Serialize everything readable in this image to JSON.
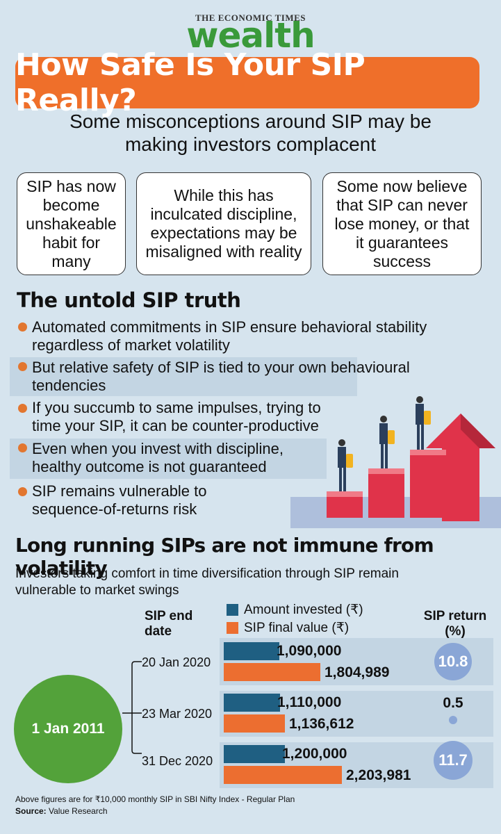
{
  "masthead": {
    "publisher": "THE ECONOMIC TIMES",
    "section": "wealth"
  },
  "title": "How Safe Is Your SIP Really?",
  "subtitle": [
    "Some misconceptions around SIP may be",
    "making investors complacent"
  ],
  "boxes": [
    {
      "text": "SIP has now become unshakeable habit for many"
    },
    {
      "text": "While this has inculcated discipline, expectations may be misaligned with reality"
    },
    {
      "text": "Some now believe that SIP can never lose money, or that it guarantees success"
    }
  ],
  "truth": {
    "heading": "The untold SIP truth",
    "bullets": [
      {
        "line1": "Automated commitments in SIP ensure behavioral stability",
        "line2": "regardless of market volatility"
      },
      {
        "line1": "But relative safety of SIP is tied to your own behavioural",
        "line2": "tendencies"
      },
      {
        "line1": "If you succumb to same impulses, trying to",
        "line2": "time your SIP, it can be counter-productive"
      },
      {
        "line1": "Even when you invest with discipline,",
        "line2": "healthy outcome is not guaranteed"
      },
      {
        "line1": "SIP remains vulnerable to",
        "line2": "sequence-of-returns risk"
      }
    ]
  },
  "long": {
    "heading": "Long running SIPs are not immune from volatility",
    "subtitle_line1": "Investors taking comfort in time diversification through SIP remain",
    "subtitle_line2": "vulnerable to market swings"
  },
  "colors": {
    "invested": "#1f5f82",
    "final": "#ec6e30",
    "return_circle": "#8aa6d6",
    "start": "#53a23a",
    "accent": "#ef6f2a"
  },
  "chart_data": {
    "type": "bar",
    "start_label": "1 Jan 2011",
    "column_heads": {
      "date_line1": "SIP end",
      "date_line2": "date",
      "return_line1": "SIP return",
      "return_line2": "(%)"
    },
    "categories": [
      "20 Jan 2020",
      "23 Mar 2020",
      "31 Dec 2020"
    ],
    "series": [
      {
        "name": "Amount invested (₹)",
        "values": [
          1090000,
          1110000,
          1200000
        ],
        "labels": [
          "1,090,000",
          "1,110,000",
          "1,200,000"
        ]
      },
      {
        "name": "SIP final value (₹)",
        "values": [
          1804989,
          1136612,
          2203981
        ],
        "labels": [
          "1,804,989",
          "1,136,612",
          "2,203,981"
        ]
      }
    ],
    "returns": [
      10.8,
      0.5,
      11.7
    ],
    "return_labels": [
      "10.8",
      "0.5",
      "11.7"
    ]
  },
  "footnote": "Above figures are for ₹10,000 monthly SIP in SBI Nifty Index - Regular Plan",
  "source": {
    "label": "Source:",
    "value": " Value Research"
  }
}
